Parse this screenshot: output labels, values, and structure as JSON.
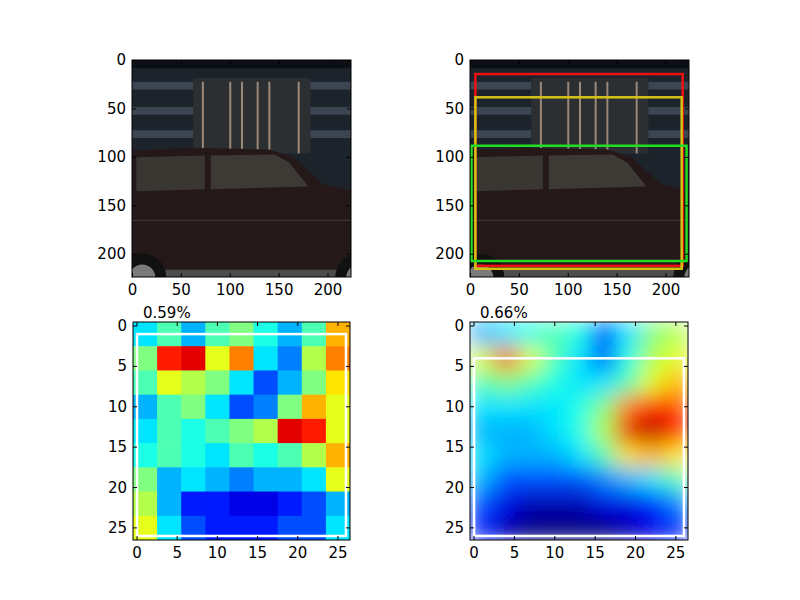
{
  "chart_data": [
    {
      "type": "image",
      "xlim": [
        -0.5,
        223.5
      ],
      "ylim": [
        223.5,
        -0.5
      ],
      "xticks": [
        0,
        50,
        100,
        150,
        200
      ],
      "yticks": [
        0,
        50,
        100,
        150,
        200
      ]
    },
    {
      "type": "image",
      "xlim": [
        -0.5,
        223.5
      ],
      "ylim": [
        223.5,
        -0.5
      ],
      "xticks": [
        0,
        50,
        100,
        150,
        200
      ],
      "yticks": [
        0,
        50,
        100,
        150,
        200
      ],
      "boxes": [
        {
          "color": "#ee1111",
          "x": [
            5,
            217
          ],
          "y": [
            14,
            212
          ]
        },
        {
          "color": "#d4c214",
          "x": [
            5,
            216
          ],
          "y": [
            38,
            215
          ]
        },
        {
          "color": "#22dd22",
          "x": [
            1,
            221
          ],
          "y": [
            88,
            207
          ]
        }
      ]
    },
    {
      "type": "heatmap",
      "title": "0.59%",
      "xlim": [
        -0.5,
        26.5
      ],
      "ylim": [
        26.5,
        -0.5
      ],
      "xticks": [
        0,
        5,
        10,
        15,
        20,
        25
      ],
      "yticks": [
        0,
        5,
        10,
        15,
        20,
        25
      ],
      "color_range": [
        0,
        1
      ],
      "cells": [
        [
          0.35,
          0.45,
          0.3,
          0.45,
          0.5,
          0.4,
          0.3,
          0.45,
          0.7
        ],
        [
          0.5,
          0.85,
          0.9,
          0.6,
          0.75,
          0.35,
          0.25,
          0.55,
          0.75
        ],
        [
          0.45,
          0.6,
          0.55,
          0.5,
          0.35,
          0.2,
          0.3,
          0.5,
          0.65
        ],
        [
          0.3,
          0.45,
          0.5,
          0.35,
          0.2,
          0.25,
          0.5,
          0.7,
          0.6
        ],
        [
          0.35,
          0.45,
          0.4,
          0.45,
          0.5,
          0.55,
          0.9,
          0.85,
          0.6
        ],
        [
          0.4,
          0.45,
          0.4,
          0.35,
          0.45,
          0.4,
          0.45,
          0.55,
          0.7
        ],
        [
          0.5,
          0.3,
          0.35,
          0.3,
          0.25,
          0.3,
          0.3,
          0.35,
          0.6
        ],
        [
          0.55,
          0.3,
          0.15,
          0.15,
          0.1,
          0.1,
          0.15,
          0.2,
          0.3
        ],
        [
          0.6,
          0.35,
          0.2,
          0.15,
          0.15,
          0.15,
          0.2,
          0.2,
          0.35
        ]
      ],
      "boxes": [
        {
          "color": "#ffffff",
          "x": [
            0,
            26
          ],
          "y": [
            1,
            26
          ]
        }
      ]
    },
    {
      "type": "density",
      "title": "0.66%",
      "xlim": [
        -0.5,
        26.5
      ],
      "ylim": [
        26.5,
        -0.5
      ],
      "xticks": [
        0,
        5,
        10,
        15,
        20,
        25
      ],
      "yticks": [
        0,
        5,
        10,
        15,
        20,
        25
      ],
      "color_range": [
        0,
        1
      ],
      "cells": [
        [
          0.3,
          0.35,
          0.4,
          0.45,
          0.4,
          0.2,
          0.35,
          0.5,
          0.55
        ],
        [
          0.6,
          0.8,
          0.6,
          0.45,
          0.35,
          0.2,
          0.4,
          0.55,
          0.6
        ],
        [
          0.45,
          0.5,
          0.45,
          0.4,
          0.35,
          0.35,
          0.45,
          0.6,
          0.7
        ],
        [
          0.35,
          0.35,
          0.35,
          0.35,
          0.4,
          0.5,
          0.75,
          0.85,
          0.8
        ],
        [
          0.3,
          0.3,
          0.3,
          0.35,
          0.4,
          0.55,
          0.9,
          0.95,
          0.85
        ],
        [
          0.35,
          0.3,
          0.3,
          0.3,
          0.35,
          0.45,
          0.65,
          0.7,
          0.65
        ],
        [
          0.3,
          0.2,
          0.2,
          0.2,
          0.2,
          0.25,
          0.3,
          0.35,
          0.45
        ],
        [
          0.2,
          0.1,
          0.05,
          0.05,
          0.05,
          0.1,
          0.1,
          0.15,
          0.25
        ],
        [
          0.15,
          0.05,
          0.0,
          0.0,
          0.0,
          0.0,
          0.05,
          0.1,
          0.15
        ]
      ],
      "boxes": [
        {
          "color": "#ffffff",
          "x": [
            0,
            26
          ],
          "y": [
            4,
            26
          ]
        }
      ]
    }
  ]
}
